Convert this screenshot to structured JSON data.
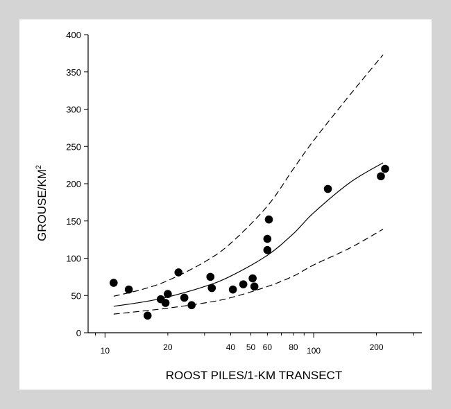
{
  "chart_data": {
    "type": "scatter",
    "title": "",
    "xlabel": "ROOST PILES/1-KM TRANSECT",
    "ylabel_main": "GROUSE/KM",
    "ylabel_superscript": "2",
    "x_scale": "log",
    "xlim": [
      8.3,
      330
    ],
    "ylim": [
      0,
      400
    ],
    "x_ticks": [
      {
        "value": 10,
        "label": "10",
        "major": true
      },
      {
        "value": 20,
        "label": "20",
        "major": false
      },
      {
        "value": 40,
        "label": "40",
        "major": false
      },
      {
        "value": 50,
        "label": "50",
        "major": false
      },
      {
        "value": 60,
        "label": "60",
        "major": false
      },
      {
        "value": 80,
        "label": "80",
        "major": false
      },
      {
        "value": 100,
        "label": "100",
        "major": true
      },
      {
        "value": 200,
        "label": "200",
        "major": false
      }
    ],
    "y_ticks": [
      0,
      50,
      100,
      150,
      200,
      250,
      300,
      350,
      400
    ],
    "grid": false,
    "series": [
      {
        "style": "points",
        "x": [
          11,
          13,
          16,
          18.5,
          19.5,
          20,
          22.5,
          24,
          26,
          32,
          32.5,
          41,
          46,
          51,
          52,
          60,
          60,
          61,
          117,
          210,
          220
        ],
        "y": [
          67,
          58,
          23,
          45,
          40,
          52,
          81,
          47,
          37,
          75,
          60,
          58,
          65,
          73,
          62,
          126,
          111,
          152,
          193,
          210,
          220
        ]
      },
      {
        "style": "solid-curve",
        "x": [
          11,
          15,
          20,
          30,
          40,
          60,
          80,
          100,
          150,
          215
        ],
        "y": [
          35.5,
          41,
          48,
          62,
          76,
          104,
          133,
          161,
          202,
          228
        ]
      },
      {
        "style": "dashed-curve-upper",
        "x": [
          11,
          15,
          20,
          30,
          40,
          60,
          80,
          100,
          150,
          215
        ],
        "y": [
          49,
          58,
          70,
          95,
          120,
          170,
          220,
          258,
          320,
          373
        ]
      },
      {
        "style": "dashed-curve-lower",
        "x": [
          11,
          15,
          20,
          30,
          40,
          60,
          80,
          100,
          150,
          215
        ],
        "y": [
          25,
          29,
          33,
          40,
          47,
          62,
          76,
          91,
          114,
          139
        ]
      }
    ]
  }
}
